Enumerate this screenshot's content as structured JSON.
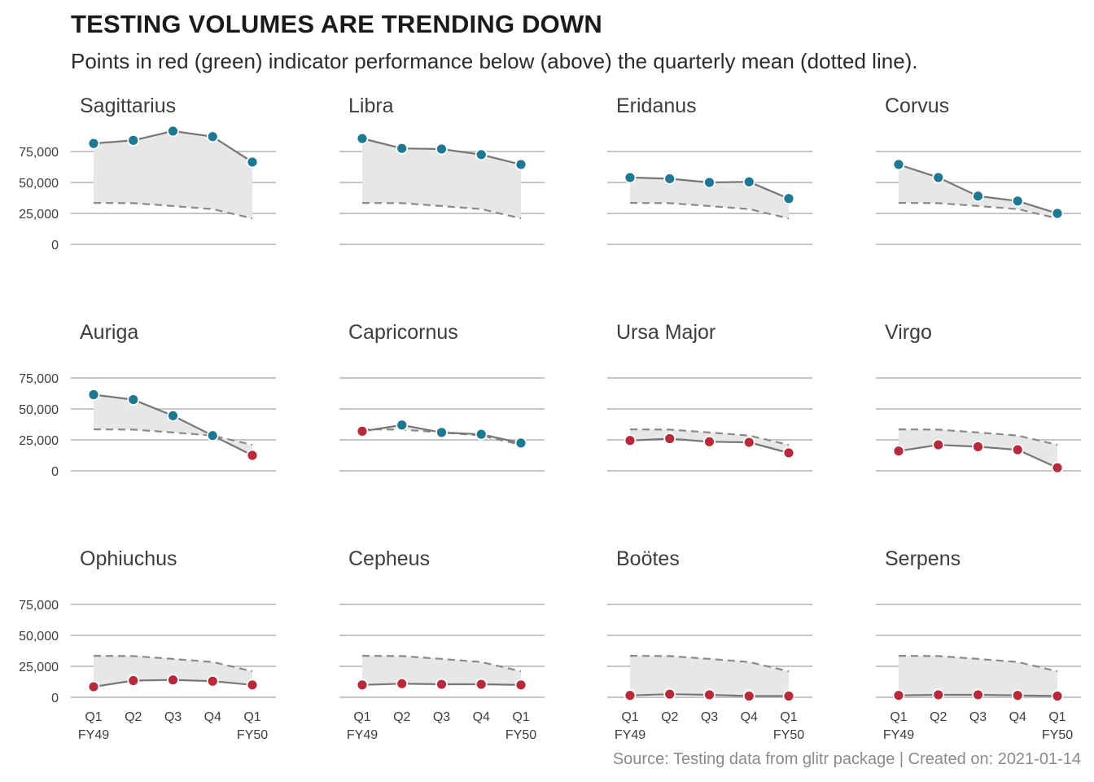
{
  "title": "TESTING VOLUMES ARE TRENDING DOWN",
  "subtitle": "Points in red (green) indicator performance below (above) the quarterly mean (dotted line).",
  "caption": "Source: Testing data from glitr package | Created on: 2021-01-14",
  "colors": {
    "above": "#1e7891",
    "below": "#b72a3c",
    "line": "#767676",
    "mean_line": "#8a8a8a",
    "ribbon": "#e6e7e8",
    "grid": "#c6c6c6"
  },
  "chart_data": {
    "type": "line",
    "layout": "small-multiples",
    "ylim": [
      0,
      80000
    ],
    "y_ticks": [
      0,
      25000,
      50000,
      75000
    ],
    "y_tick_labels": [
      "0",
      "25,000",
      "50,000",
      "75,000"
    ],
    "x_tick_labels": [
      "Q1\nFY49",
      "Q2",
      "Q3",
      "Q4",
      "Q1\nFY50"
    ],
    "x": [
      "FY49 Q1",
      "FY49 Q2",
      "FY49 Q3",
      "FY49 Q4",
      "FY50 Q1"
    ],
    "quarterly_mean": [
      33500,
      33300,
      31000,
      28500,
      21000
    ],
    "facets": [
      {
        "name": "Sagittarius",
        "values": [
          81500,
          84000,
          91500,
          87000,
          66500
        ]
      },
      {
        "name": "Libra",
        "values": [
          85500,
          77500,
          77000,
          72500,
          64500
        ]
      },
      {
        "name": "Eridanus",
        "values": [
          54000,
          53000,
          50000,
          50500,
          37000
        ]
      },
      {
        "name": "Corvus",
        "values": [
          64500,
          54000,
          39000,
          35000,
          25000
        ]
      },
      {
        "name": "Auriga",
        "values": [
          61500,
          57500,
          44500,
          28500,
          12500
        ]
      },
      {
        "name": "Capricornus",
        "values": [
          32000,
          37000,
          31000,
          29500,
          22500
        ]
      },
      {
        "name": "Ursa Major",
        "values": [
          24500,
          26000,
          23500,
          23000,
          14500
        ]
      },
      {
        "name": "Virgo",
        "values": [
          16000,
          21000,
          19500,
          17000,
          2500
        ]
      },
      {
        "name": "Ophiuchus",
        "values": [
          8500,
          13500,
          14000,
          13000,
          10000
        ]
      },
      {
        "name": "Cepheus",
        "values": [
          10000,
          11000,
          10500,
          10500,
          10000
        ]
      },
      {
        "name": "Boötes",
        "values": [
          1500,
          2500,
          2000,
          1000,
          1000
        ]
      },
      {
        "name": "Serpens",
        "values": [
          1500,
          2000,
          2000,
          1500,
          1000
        ]
      }
    ]
  }
}
